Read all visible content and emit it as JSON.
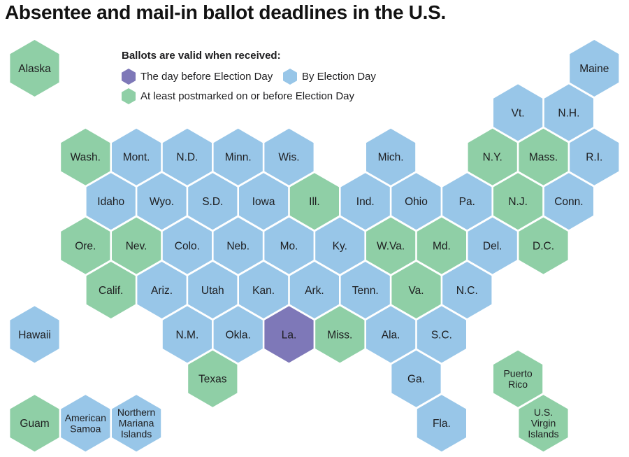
{
  "title": "Absentee and mail-in ballot deadlines in the U.S.",
  "legend": {
    "heading": "Ballots are valid when received:",
    "items": [
      {
        "label": "The day before Election Day",
        "category": "day_before"
      },
      {
        "label": "By Election Day",
        "category": "by_election_day"
      },
      {
        "label": "At least postmarked on or before Election Day",
        "category": "postmarked"
      }
    ]
  },
  "colors": {
    "day_before": "#7e78b8",
    "by_election_day": "#98c6e8",
    "postmarked": "#8fcfa6"
  },
  "map": {
    "states": [
      {
        "id": "alaska",
        "label": "Alaska",
        "col": 0,
        "row": 0,
        "category": "postmarked"
      },
      {
        "id": "maine",
        "label": "Maine",
        "col": 22,
        "row": 0,
        "category": "by_election_day"
      },
      {
        "id": "vt",
        "label": "Vt.",
        "col": 19,
        "row": 1,
        "category": "by_election_day"
      },
      {
        "id": "nh",
        "label": "N.H.",
        "col": 21,
        "row": 1,
        "category": "by_election_day"
      },
      {
        "id": "wash",
        "label": "Wash.",
        "col": 2,
        "row": 2,
        "category": "postmarked"
      },
      {
        "id": "mont",
        "label": "Mont.",
        "col": 4,
        "row": 2,
        "category": "by_election_day"
      },
      {
        "id": "nd",
        "label": "N.D.",
        "col": 6,
        "row": 2,
        "category": "by_election_day"
      },
      {
        "id": "minn",
        "label": "Minn.",
        "col": 8,
        "row": 2,
        "category": "by_election_day"
      },
      {
        "id": "wis",
        "label": "Wis.",
        "col": 10,
        "row": 2,
        "category": "by_election_day"
      },
      {
        "id": "mich",
        "label": "Mich.",
        "col": 14,
        "row": 2,
        "category": "by_election_day"
      },
      {
        "id": "ny",
        "label": "N.Y.",
        "col": 18,
        "row": 2,
        "category": "postmarked"
      },
      {
        "id": "mass",
        "label": "Mass.",
        "col": 20,
        "row": 2,
        "category": "postmarked"
      },
      {
        "id": "ri",
        "label": "R.I.",
        "col": 22,
        "row": 2,
        "category": "by_election_day"
      },
      {
        "id": "idaho",
        "label": "Idaho",
        "col": 3,
        "row": 3,
        "category": "by_election_day"
      },
      {
        "id": "wyo",
        "label": "Wyo.",
        "col": 5,
        "row": 3,
        "category": "by_election_day"
      },
      {
        "id": "sd",
        "label": "S.D.",
        "col": 7,
        "row": 3,
        "category": "by_election_day"
      },
      {
        "id": "iowa",
        "label": "Iowa",
        "col": 9,
        "row": 3,
        "category": "by_election_day"
      },
      {
        "id": "ill",
        "label": "Ill.",
        "col": 11,
        "row": 3,
        "category": "postmarked"
      },
      {
        "id": "ind",
        "label": "Ind.",
        "col": 13,
        "row": 3,
        "category": "by_election_day"
      },
      {
        "id": "ohio",
        "label": "Ohio",
        "col": 15,
        "row": 3,
        "category": "by_election_day"
      },
      {
        "id": "pa",
        "label": "Pa.",
        "col": 17,
        "row": 3,
        "category": "by_election_day"
      },
      {
        "id": "nj",
        "label": "N.J.",
        "col": 19,
        "row": 3,
        "category": "postmarked"
      },
      {
        "id": "conn",
        "label": "Conn.",
        "col": 21,
        "row": 3,
        "category": "by_election_day"
      },
      {
        "id": "ore",
        "label": "Ore.",
        "col": 2,
        "row": 4,
        "category": "postmarked"
      },
      {
        "id": "nev",
        "label": "Nev.",
        "col": 4,
        "row": 4,
        "category": "postmarked"
      },
      {
        "id": "colo",
        "label": "Colo.",
        "col": 6,
        "row": 4,
        "category": "by_election_day"
      },
      {
        "id": "neb",
        "label": "Neb.",
        "col": 8,
        "row": 4,
        "category": "by_election_day"
      },
      {
        "id": "mo",
        "label": "Mo.",
        "col": 10,
        "row": 4,
        "category": "by_election_day"
      },
      {
        "id": "ky",
        "label": "Ky.",
        "col": 12,
        "row": 4,
        "category": "by_election_day"
      },
      {
        "id": "wva",
        "label": "W.Va.",
        "col": 14,
        "row": 4,
        "category": "postmarked"
      },
      {
        "id": "md",
        "label": "Md.",
        "col": 16,
        "row": 4,
        "category": "postmarked"
      },
      {
        "id": "del",
        "label": "Del.",
        "col": 18,
        "row": 4,
        "category": "by_election_day"
      },
      {
        "id": "dc",
        "label": "D.C.",
        "col": 20,
        "row": 4,
        "category": "postmarked"
      },
      {
        "id": "calif",
        "label": "Calif.",
        "col": 3,
        "row": 5,
        "category": "postmarked"
      },
      {
        "id": "ariz",
        "label": "Ariz.",
        "col": 5,
        "row": 5,
        "category": "by_election_day"
      },
      {
        "id": "utah",
        "label": "Utah",
        "col": 7,
        "row": 5,
        "category": "by_election_day"
      },
      {
        "id": "kan",
        "label": "Kan.",
        "col": 9,
        "row": 5,
        "category": "by_election_day"
      },
      {
        "id": "ark",
        "label": "Ark.",
        "col": 11,
        "row": 5,
        "category": "by_election_day"
      },
      {
        "id": "tenn",
        "label": "Tenn.",
        "col": 13,
        "row": 5,
        "category": "by_election_day"
      },
      {
        "id": "va",
        "label": "Va.",
        "col": 15,
        "row": 5,
        "category": "postmarked"
      },
      {
        "id": "nc",
        "label": "N.C.",
        "col": 17,
        "row": 5,
        "category": "by_election_day"
      },
      {
        "id": "hawaii",
        "label": "Hawaii",
        "col": 0,
        "row": 6,
        "category": "by_election_day"
      },
      {
        "id": "nm",
        "label": "N.M.",
        "col": 6,
        "row": 6,
        "category": "by_election_day"
      },
      {
        "id": "okla",
        "label": "Okla.",
        "col": 8,
        "row": 6,
        "category": "by_election_day"
      },
      {
        "id": "la",
        "label": "La.",
        "col": 10,
        "row": 6,
        "category": "day_before"
      },
      {
        "id": "miss",
        "label": "Miss.",
        "col": 12,
        "row": 6,
        "category": "postmarked"
      },
      {
        "id": "ala",
        "label": "Ala.",
        "col": 14,
        "row": 6,
        "category": "by_election_day"
      },
      {
        "id": "sc",
        "label": "S.C.",
        "col": 16,
        "row": 6,
        "category": "by_election_day"
      },
      {
        "id": "texas",
        "label": "Texas",
        "col": 7,
        "row": 7,
        "category": "postmarked"
      },
      {
        "id": "ga",
        "label": "Ga.",
        "col": 15,
        "row": 7,
        "category": "by_election_day"
      },
      {
        "id": "pr",
        "label": "Puerto Rico",
        "lines": [
          "Puerto",
          "Rico"
        ],
        "col": 19,
        "row": 7,
        "category": "postmarked"
      },
      {
        "id": "guam",
        "label": "Guam",
        "col": 0,
        "row": 8,
        "category": "postmarked"
      },
      {
        "id": "as",
        "label": "American Samoa",
        "lines": [
          "American",
          "Samoa"
        ],
        "col": 2,
        "row": 8,
        "category": "by_election_day"
      },
      {
        "id": "nmi",
        "label": "Northern Mariana Islands",
        "lines": [
          "Northern",
          "Mariana",
          "Islands"
        ],
        "col": 4,
        "row": 8,
        "category": "by_election_day"
      },
      {
        "id": "fla",
        "label": "Fla.",
        "col": 16,
        "row": 8,
        "category": "by_election_day"
      },
      {
        "id": "usvi",
        "label": "U.S. Virgin Islands",
        "lines": [
          "U.S.",
          "Virgin",
          "Islands"
        ],
        "col": 20,
        "row": 8,
        "category": "postmarked"
      }
    ]
  }
}
